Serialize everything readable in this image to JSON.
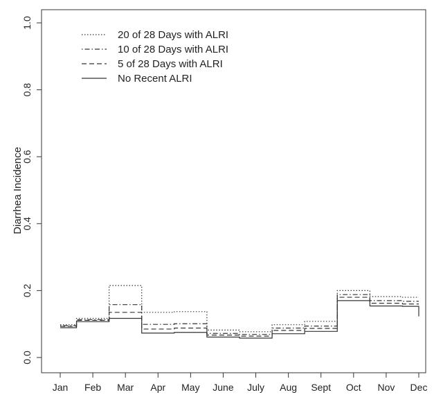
{
  "chart_data": {
    "type": "line",
    "step": true,
    "title": "",
    "xlabel": "",
    "ylabel": "Diarrhea Incidence",
    "categories": [
      "Jan",
      "Feb",
      "Mar",
      "Apr",
      "May",
      "June",
      "July",
      "Aug",
      "Sept",
      "Oct",
      "Nov",
      "Dec"
    ],
    "ylim": [
      0.0,
      1.0
    ],
    "yticks": [
      "0.0",
      "0.2",
      "0.4",
      "0.6",
      "0.8",
      "1.0"
    ],
    "grid": false,
    "legend_position": "top-left",
    "series": [
      {
        "name": "20 of 28 Days with ALRI",
        "dash": "dotted",
        "values": [
          0.098,
          0.117,
          0.215,
          0.135,
          0.137,
          0.082,
          0.077,
          0.098,
          0.108,
          0.2,
          0.182,
          0.18
        ]
      },
      {
        "name": "10 of 28 Days with ALRI",
        "dash": "dotdash",
        "values": [
          0.095,
          0.113,
          0.158,
          0.099,
          0.101,
          0.072,
          0.069,
          0.088,
          0.094,
          0.188,
          0.17,
          0.168
        ]
      },
      {
        "name": "5 of 28 Days with ALRI",
        "dash": "dashed",
        "values": [
          0.093,
          0.111,
          0.135,
          0.085,
          0.088,
          0.067,
          0.064,
          0.081,
          0.087,
          0.18,
          0.162,
          0.16
        ]
      },
      {
        "name": "No Recent ALRI",
        "dash": "solid",
        "values": [
          0.089,
          0.107,
          0.117,
          0.073,
          0.075,
          0.061,
          0.058,
          0.071,
          0.078,
          0.17,
          0.154,
          0.153
        ]
      }
    ],
    "colors": {
      "line": "#333333",
      "axis": "#333333"
    }
  }
}
